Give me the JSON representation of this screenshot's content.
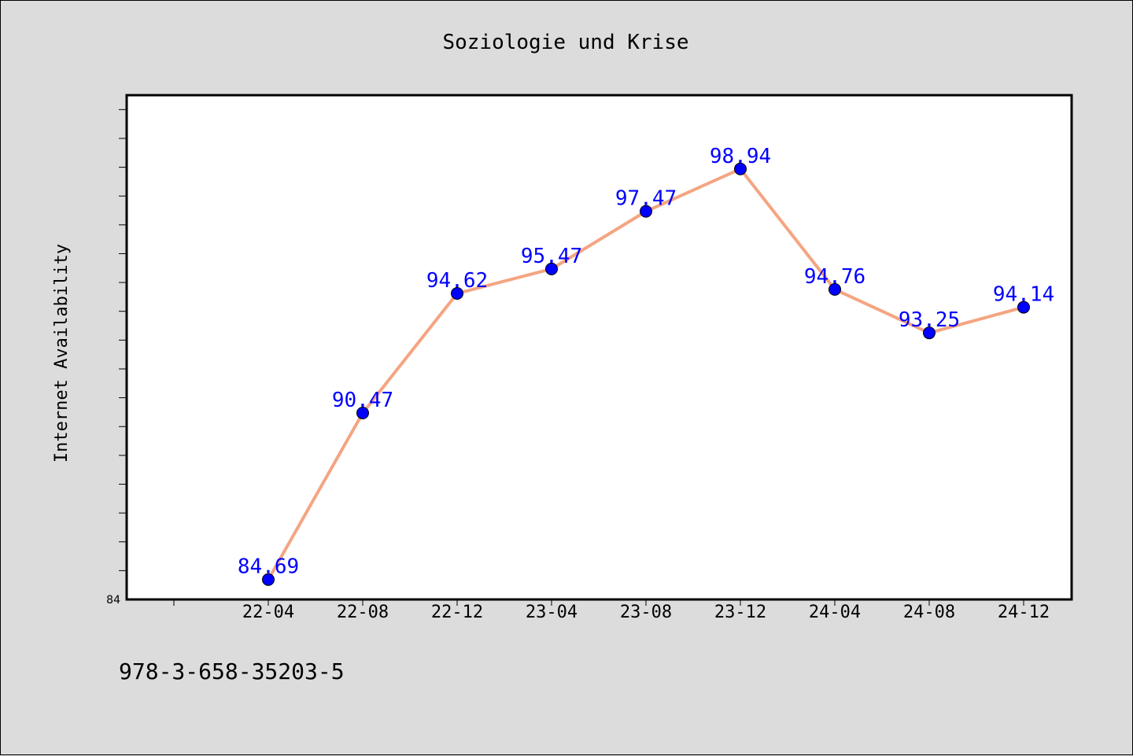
{
  "chart_data": {
    "type": "line",
    "title": "Soziologie und Krise",
    "xlabel": "",
    "ylabel": "Internet Availability",
    "categories": [
      "22-04",
      "22-08",
      "22-12",
      "23-04",
      "23-08",
      "23-12",
      "24-04",
      "24-08",
      "24-12"
    ],
    "series": [
      {
        "values": [
          84.69,
          90.47,
          94.62,
          95.47,
          97.47,
          98.94,
          94.76,
          93.25,
          94.14
        ]
      }
    ],
    "y_tick_labels": [
      "84"
    ],
    "ylim": [
      84,
      101.5
    ],
    "grid": false,
    "legend": "none",
    "data_labels": true
  },
  "footer_text": "978-3-658-35203-5",
  "colors": {
    "background": "#dcdcdc",
    "plot_background": "#ffffff",
    "line": "#f4a582",
    "marker": "#0000ff",
    "data_label": "#0000ff"
  }
}
